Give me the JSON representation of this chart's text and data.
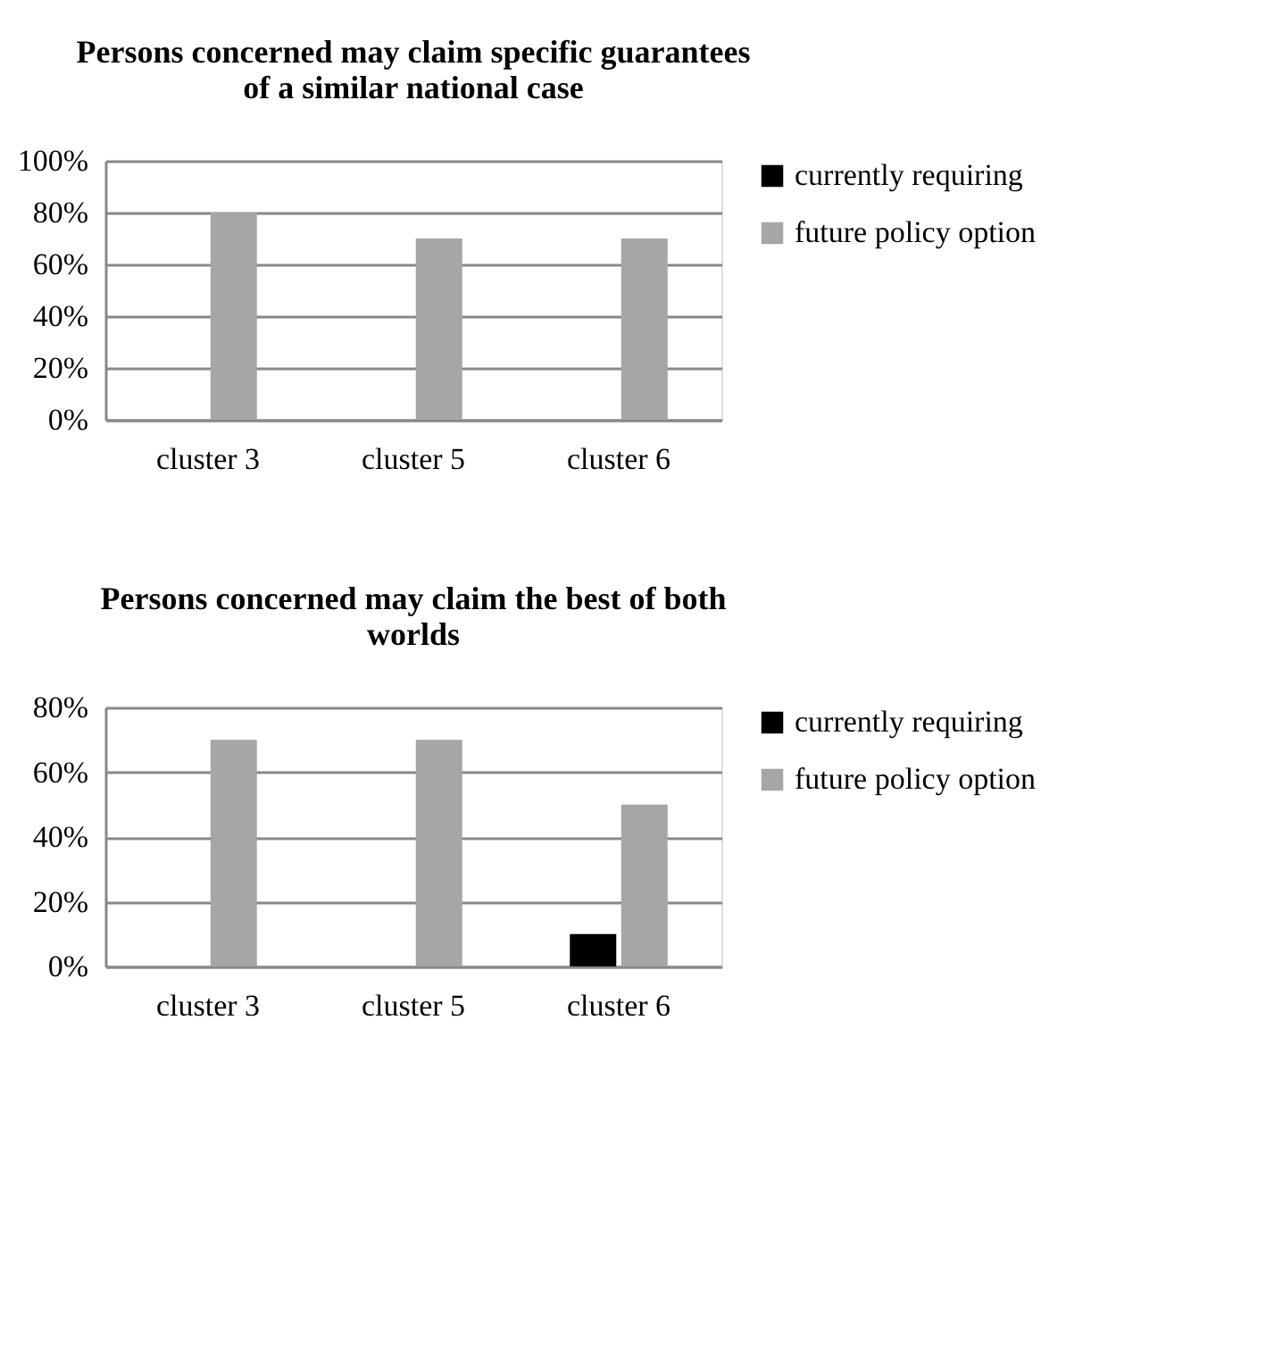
{
  "chart_data": [
    {
      "type": "bar",
      "title": "Persons concerned may claim specific guarantees of a similar national case",
      "categories": [
        "cluster 3",
        "cluster 5",
        "cluster 6"
      ],
      "series": [
        {
          "name": "currently requiring",
          "color": "#000000",
          "values": [
            0,
            0,
            0
          ]
        },
        {
          "name": "future policy option",
          "color": "#a6a6a6",
          "values": [
            80,
            70,
            70
          ]
        }
      ],
      "ylim": [
        0,
        100
      ],
      "yticks": [
        {
          "value": 0,
          "label": "0%"
        },
        {
          "value": 20,
          "label": "20%"
        },
        {
          "value": 40,
          "label": "40%"
        },
        {
          "value": 60,
          "label": "60%"
        },
        {
          "value": 80,
          "label": "80%"
        },
        {
          "value": 100,
          "label": "100%"
        }
      ],
      "grid": "y",
      "legend": "right"
    },
    {
      "type": "bar",
      "title": "Persons concerned may claim the best of both worlds",
      "categories": [
        "cluster 3",
        "cluster 5",
        "cluster 6"
      ],
      "series": [
        {
          "name": "currently requiring",
          "color": "#000000",
          "values": [
            0,
            0,
            10
          ]
        },
        {
          "name": "future policy option",
          "color": "#a6a6a6",
          "values": [
            70,
            70,
            50
          ]
        }
      ],
      "ylim": [
        0,
        80
      ],
      "yticks": [
        {
          "value": 0,
          "label": "0%"
        },
        {
          "value": 20,
          "label": "20%"
        },
        {
          "value": 40,
          "label": "40%"
        },
        {
          "value": 60,
          "label": "60%"
        },
        {
          "value": 80,
          "label": "80%"
        }
      ],
      "grid": "y",
      "legend": "right"
    }
  ]
}
